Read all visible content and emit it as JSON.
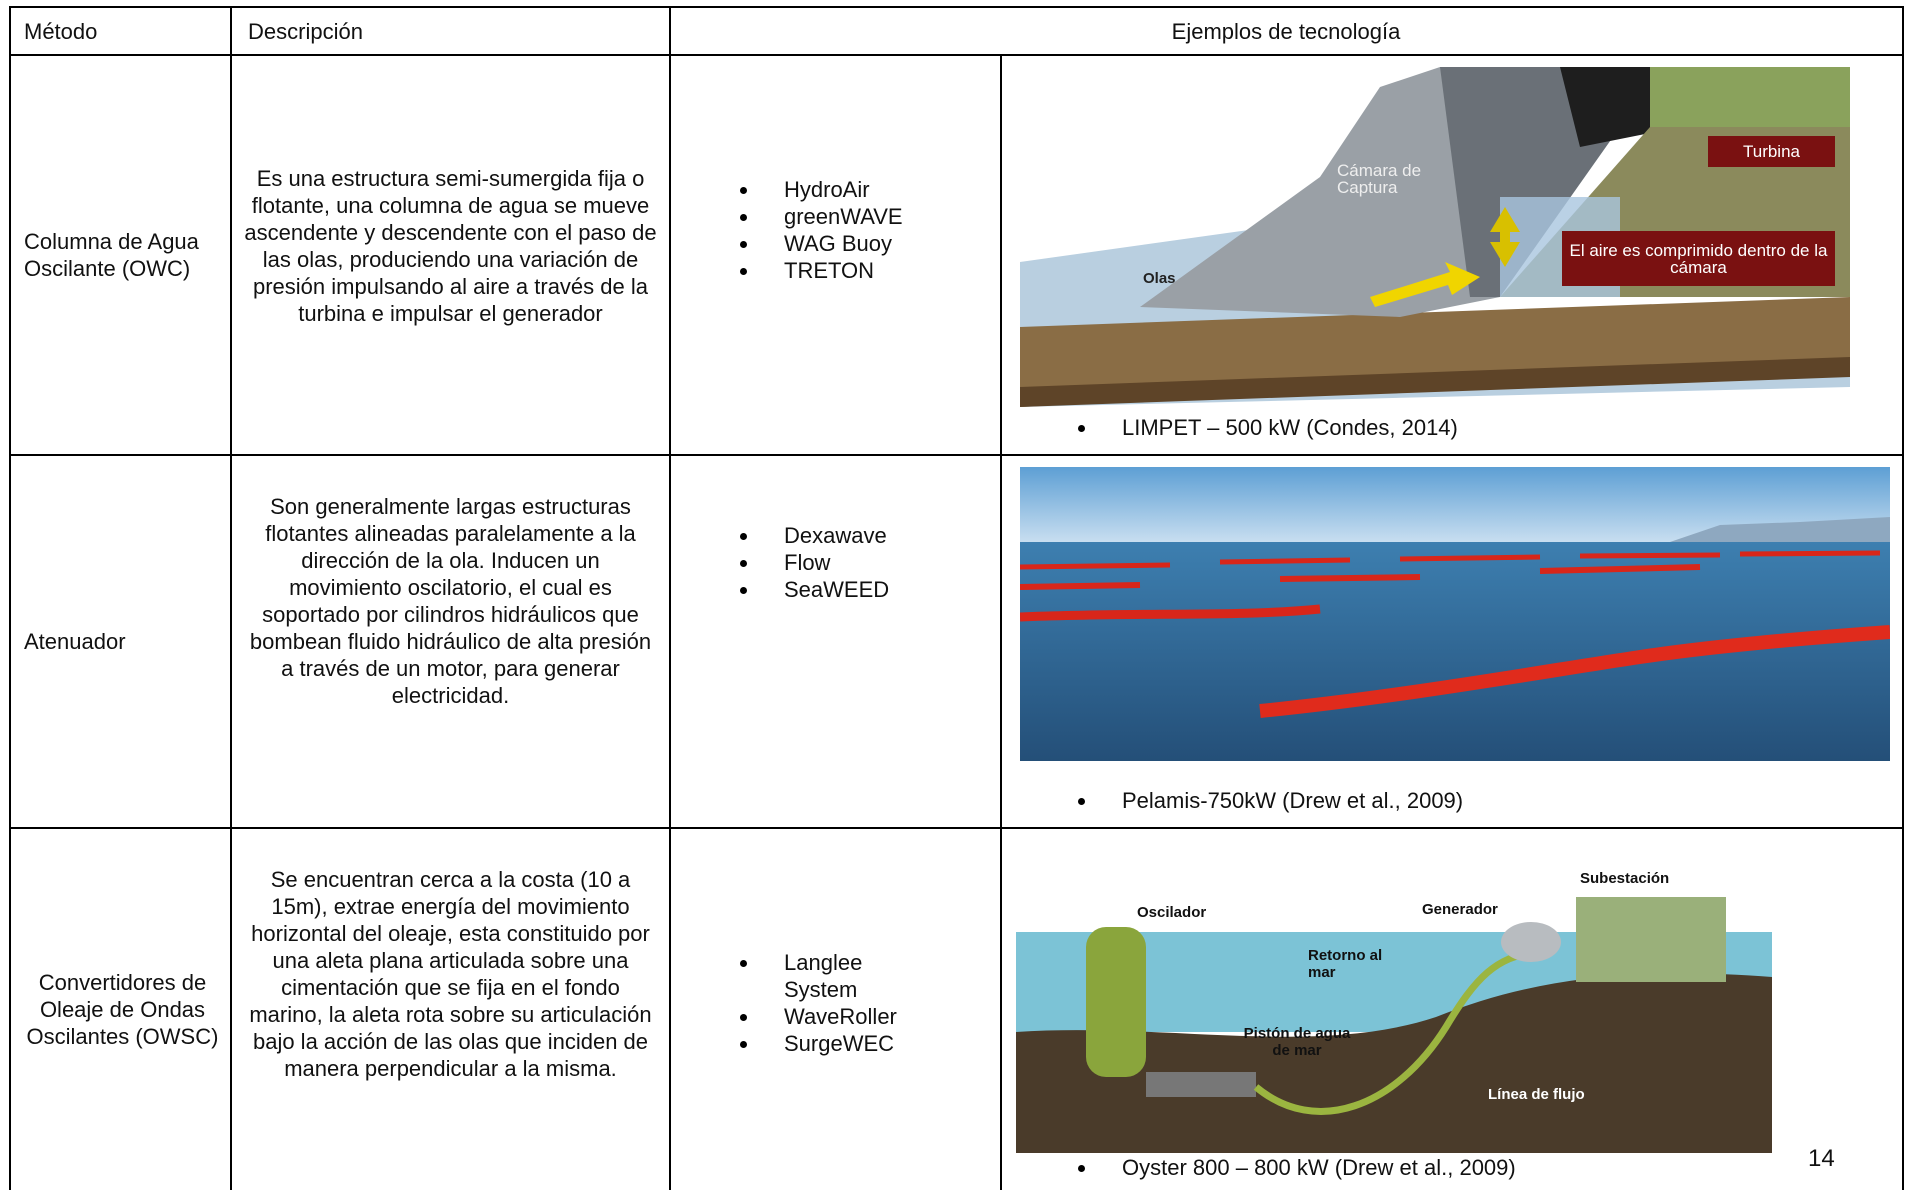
{
  "table": {
    "header": [
      "Método",
      "Descripción",
      "Ejemplos de tecnología"
    ],
    "rows": [
      {
        "method": "Columna de Agua Oscilante (OWC)",
        "description": "Es una estructura semi-sumergida fija o flotante, una columna de agua se mueve ascendente y descendente con el paso de las olas, produciendo una variación de presión impulsando al aire a través de la turbina e impulsar el generador",
        "technologies": [
          "HydroAir",
          "greenWAVE",
          "WAG Buoy",
          "TRETON"
        ],
        "figure": {
          "labels": [
            "Cámara de Captura",
            "Turbina",
            "El aire es comprimido dentro de la cámara",
            "Olas"
          ],
          "caption": "LIMPET – 500 kW  (Condes, 2014)"
        }
      },
      {
        "method": "Atenuador",
        "description": "Son generalmente largas estructuras flotantes alineadas paralelamente a la dirección de la ola. Inducen un movimiento oscilatorio, el cual es soportado por cilindros hidráulicos que bombean fluido hidráulico de alta presión a través de un motor, para generar electricidad.",
        "technologies": [
          "Dexawave",
          "Flow",
          "SeaWEED"
        ],
        "figure": {
          "caption": "Pelamis-750kW (Drew et al., 2009)"
        }
      },
      {
        "method": "Convertidores de Oleaje de Ondas Oscilantes (OWSC)",
        "description": "Se encuentran cerca a la costa (10 a 15m), extrae energía del movimiento horizontal del oleaje, esta constituido por una aleta plana articulada sobre una cimentación que se fija en el fondo marino, la aleta rota sobre su articulación bajo la acción de las olas que inciden de manera perpendicular a la misma.",
        "technologies": [
          "Langlee System",
          "WaveRoller",
          "SurgeWEC"
        ],
        "figure": {
          "labels": [
            "Oscilador",
            "Generador",
            "Subestación",
            "Retorno al mar",
            "Pistón de agua de mar",
            "Línea de flujo"
          ],
          "caption": "Oyster 800 – 800 kW (Drew et al., 2009)"
        }
      }
    ]
  },
  "page_number": "14"
}
